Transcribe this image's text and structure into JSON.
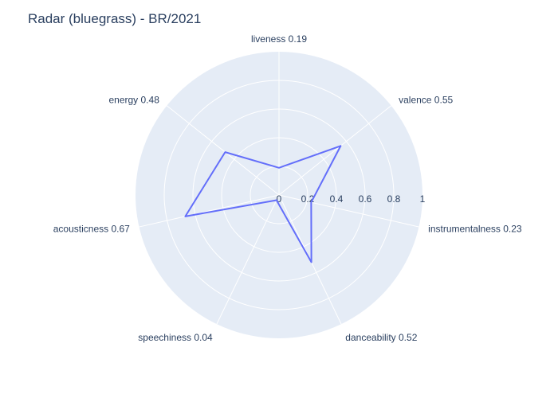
{
  "chart_data": {
    "type": "radar",
    "title": "Radar (bluegrass) - BR/2021",
    "categories": [
      "liveness 0.19",
      "valence 0.55",
      "instrumentalness 0.23",
      "danceability 0.52",
      "speechiness 0.04",
      "acousticness 0.67",
      "energy 0.48"
    ],
    "values": [
      0.19,
      0.55,
      0.23,
      0.52,
      0.04,
      0.67,
      0.48
    ],
    "radial_range": [
      0,
      1
    ],
    "radial_ticks": [
      "0",
      "0.2",
      "0.4",
      "0.6",
      "0.8",
      "1"
    ],
    "radial_tick_values": [
      0,
      0.2,
      0.4,
      0.6,
      0.8,
      1
    ],
    "angular_direction": "clockwise",
    "angular_start": "top",
    "colors": {
      "plot_background": "#e5ecf6",
      "grid": "#ffffff",
      "line": "#636efa",
      "text": "#2a3f5f"
    },
    "legend": "none"
  }
}
